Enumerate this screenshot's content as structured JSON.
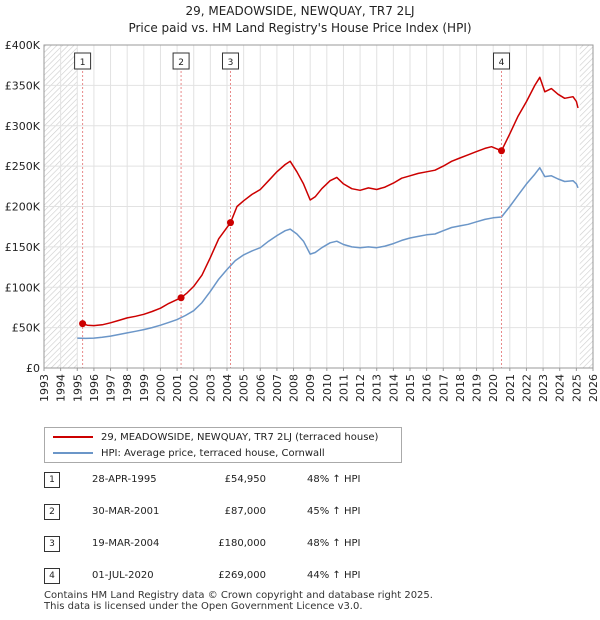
{
  "title_line1": "29, MEADOWSIDE, NEWQUAY, TR7 2LJ",
  "title_line2": "Price paid vs. HM Land Registry's House Price Index (HPI)",
  "chart_data": {
    "type": "line",
    "title": "29, MEADOWSIDE, NEWQUAY, TR7 2LJ — Price paid vs. HM Land Registry's House Price Index (HPI)",
    "xlabel": "",
    "ylabel": "",
    "xlim": [
      1993,
      2026
    ],
    "ylim": [
      0,
      400000
    ],
    "y_ticks": [
      {
        "value": 0,
        "label": "£0"
      },
      {
        "value": 50000,
        "label": "£50K"
      },
      {
        "value": 100000,
        "label": "£100K"
      },
      {
        "value": 150000,
        "label": "£150K"
      },
      {
        "value": 200000,
        "label": "£200K"
      },
      {
        "value": 250000,
        "label": "£250K"
      },
      {
        "value": 300000,
        "label": "£300K"
      },
      {
        "value": 350000,
        "label": "£350K"
      },
      {
        "value": 400000,
        "label": "£400K"
      }
    ],
    "x_ticks": [
      "1993",
      "1994",
      "1995",
      "1996",
      "1997",
      "1998",
      "1999",
      "2000",
      "2001",
      "2002",
      "2003",
      "2004",
      "2005",
      "2006",
      "2007",
      "2008",
      "2009",
      "2010",
      "2011",
      "2012",
      "2013",
      "2014",
      "2015",
      "2016",
      "2017",
      "2018",
      "2019",
      "2020",
      "2021",
      "2022",
      "2023",
      "2024",
      "2025",
      "2026"
    ],
    "grid": true,
    "hatched_ranges": [
      [
        1993,
        1995.0
      ],
      [
        2025.2,
        2026
      ]
    ],
    "series": [
      {
        "name": "29, MEADOWSIDE, NEWQUAY, TR7 2LJ (terraced house)",
        "color": "#cc0000",
        "points": [
          [
            1995.32,
            54950
          ],
          [
            1995.6,
            53000
          ],
          [
            1996.0,
            52500
          ],
          [
            1996.5,
            53500
          ],
          [
            1997.0,
            56000
          ],
          [
            1997.5,
            59000
          ],
          [
            1998.0,
            62000
          ],
          [
            1998.5,
            64000
          ],
          [
            1999.0,
            66500
          ],
          [
            1999.5,
            70000
          ],
          [
            2000.0,
            74000
          ],
          [
            2000.5,
            80000
          ],
          [
            2001.24,
            87000
          ],
          [
            2001.6,
            93000
          ],
          [
            2002.0,
            101000
          ],
          [
            2002.5,
            115000
          ],
          [
            2003.0,
            137000
          ],
          [
            2003.5,
            160000
          ],
          [
            2004.21,
            180000
          ],
          [
            2004.6,
            200000
          ],
          [
            2005.0,
            207000
          ],
          [
            2005.5,
            215000
          ],
          [
            2006.0,
            221000
          ],
          [
            2006.5,
            232000
          ],
          [
            2007.0,
            243000
          ],
          [
            2007.5,
            252000
          ],
          [
            2007.8,
            256000
          ],
          [
            2008.2,
            243000
          ],
          [
            2008.6,
            228000
          ],
          [
            2009.0,
            208000
          ],
          [
            2009.3,
            212000
          ],
          [
            2009.7,
            222000
          ],
          [
            2010.2,
            232000
          ],
          [
            2010.6,
            236000
          ],
          [
            2011.0,
            228000
          ],
          [
            2011.5,
            222000
          ],
          [
            2012.0,
            220000
          ],
          [
            2012.5,
            223000
          ],
          [
            2013.0,
            221000
          ],
          [
            2013.5,
            224000
          ],
          [
            2014.0,
            229000
          ],
          [
            2014.5,
            235000
          ],
          [
            2015.0,
            238000
          ],
          [
            2015.5,
            241000
          ],
          [
            2016.0,
            243000
          ],
          [
            2016.5,
            245000
          ],
          [
            2017.0,
            250000
          ],
          [
            2017.5,
            256000
          ],
          [
            2018.0,
            260000
          ],
          [
            2018.5,
            264000
          ],
          [
            2019.0,
            268000
          ],
          [
            2019.5,
            272000
          ],
          [
            2019.9,
            274000
          ],
          [
            2020.5,
            269000
          ],
          [
            2021.0,
            290000
          ],
          [
            2021.5,
            312000
          ],
          [
            2022.0,
            330000
          ],
          [
            2022.5,
            350000
          ],
          [
            2022.8,
            360000
          ],
          [
            2023.1,
            342000
          ],
          [
            2023.5,
            346000
          ],
          [
            2023.9,
            339000
          ],
          [
            2024.3,
            334000
          ],
          [
            2024.8,
            336000
          ],
          [
            2025.0,
            330000
          ],
          [
            2025.1,
            322000
          ]
        ]
      },
      {
        "name": "HPI: Average price, terraced house, Cornwall",
        "color": "#6b96c8",
        "points": [
          [
            1995.0,
            37000
          ],
          [
            1995.5,
            36700
          ],
          [
            1996.0,
            37000
          ],
          [
            1996.5,
            38000
          ],
          [
            1997.0,
            39500
          ],
          [
            1997.5,
            41500
          ],
          [
            1998.0,
            43500
          ],
          [
            1998.5,
            45500
          ],
          [
            1999.0,
            47500
          ],
          [
            1999.5,
            50000
          ],
          [
            2000.0,
            53000
          ],
          [
            2000.5,
            56500
          ],
          [
            2001.0,
            60000
          ],
          [
            2001.5,
            65000
          ],
          [
            2002.0,
            71000
          ],
          [
            2002.5,
            81000
          ],
          [
            2003.0,
            95000
          ],
          [
            2003.5,
            110000
          ],
          [
            2004.0,
            122000
          ],
          [
            2004.5,
            133000
          ],
          [
            2005.0,
            140000
          ],
          [
            2005.5,
            145000
          ],
          [
            2006.0,
            149000
          ],
          [
            2006.5,
            157000
          ],
          [
            2007.0,
            164000
          ],
          [
            2007.5,
            170000
          ],
          [
            2007.8,
            172000
          ],
          [
            2008.2,
            166000
          ],
          [
            2008.6,
            157000
          ],
          [
            2009.0,
            141000
          ],
          [
            2009.3,
            143000
          ],
          [
            2009.7,
            149000
          ],
          [
            2010.2,
            155000
          ],
          [
            2010.6,
            157000
          ],
          [
            2011.0,
            153000
          ],
          [
            2011.5,
            150000
          ],
          [
            2012.0,
            149000
          ],
          [
            2012.5,
            150000
          ],
          [
            2013.0,
            149000
          ],
          [
            2013.5,
            151000
          ],
          [
            2014.0,
            154000
          ],
          [
            2014.5,
            158000
          ],
          [
            2015.0,
            161000
          ],
          [
            2015.5,
            163000
          ],
          [
            2016.0,
            165000
          ],
          [
            2016.5,
            166000
          ],
          [
            2017.0,
            170000
          ],
          [
            2017.5,
            174000
          ],
          [
            2018.0,
            176000
          ],
          [
            2018.5,
            178000
          ],
          [
            2019.0,
            181000
          ],
          [
            2019.5,
            184000
          ],
          [
            2020.0,
            186000
          ],
          [
            2020.5,
            187000
          ],
          [
            2021.0,
            200000
          ],
          [
            2021.5,
            214000
          ],
          [
            2022.0,
            228000
          ],
          [
            2022.5,
            240000
          ],
          [
            2022.8,
            248000
          ],
          [
            2023.1,
            237000
          ],
          [
            2023.5,
            238000
          ],
          [
            2023.9,
            234000
          ],
          [
            2024.3,
            231000
          ],
          [
            2024.8,
            232000
          ],
          [
            2025.0,
            228000
          ],
          [
            2025.1,
            223000
          ]
        ]
      }
    ],
    "sales": [
      {
        "label": "1",
        "x": 1995.32,
        "price": 54950
      },
      {
        "label": "2",
        "x": 2001.24,
        "price": 87000
      },
      {
        "label": "3",
        "x": 2004.21,
        "price": 180000
      },
      {
        "label": "4",
        "x": 2020.5,
        "price": 269000
      }
    ]
  },
  "legend": [
    {
      "label": "29, MEADOWSIDE, NEWQUAY, TR7 2LJ (terraced house)",
      "color": "#cc0000"
    },
    {
      "label": "HPI: Average price, terraced house, Cornwall",
      "color": "#6b96c8"
    }
  ],
  "transactions": [
    {
      "num": "1",
      "date": "28-APR-1995",
      "price": "£54,950",
      "hpi": "48% ↑ HPI"
    },
    {
      "num": "2",
      "date": "30-MAR-2001",
      "price": "£87,000",
      "hpi": "45% ↑ HPI"
    },
    {
      "num": "3",
      "date": "19-MAR-2004",
      "price": "£180,000",
      "hpi": "48% ↑ HPI"
    },
    {
      "num": "4",
      "date": "01-JUL-2020",
      "price": "£269,000",
      "hpi": "44% ↑ HPI"
    }
  ],
  "footer_line1": "Contains HM Land Registry data © Crown copyright and database right 2025.",
  "footer_line2": "This data is licensed under the Open Government Licence v3.0."
}
